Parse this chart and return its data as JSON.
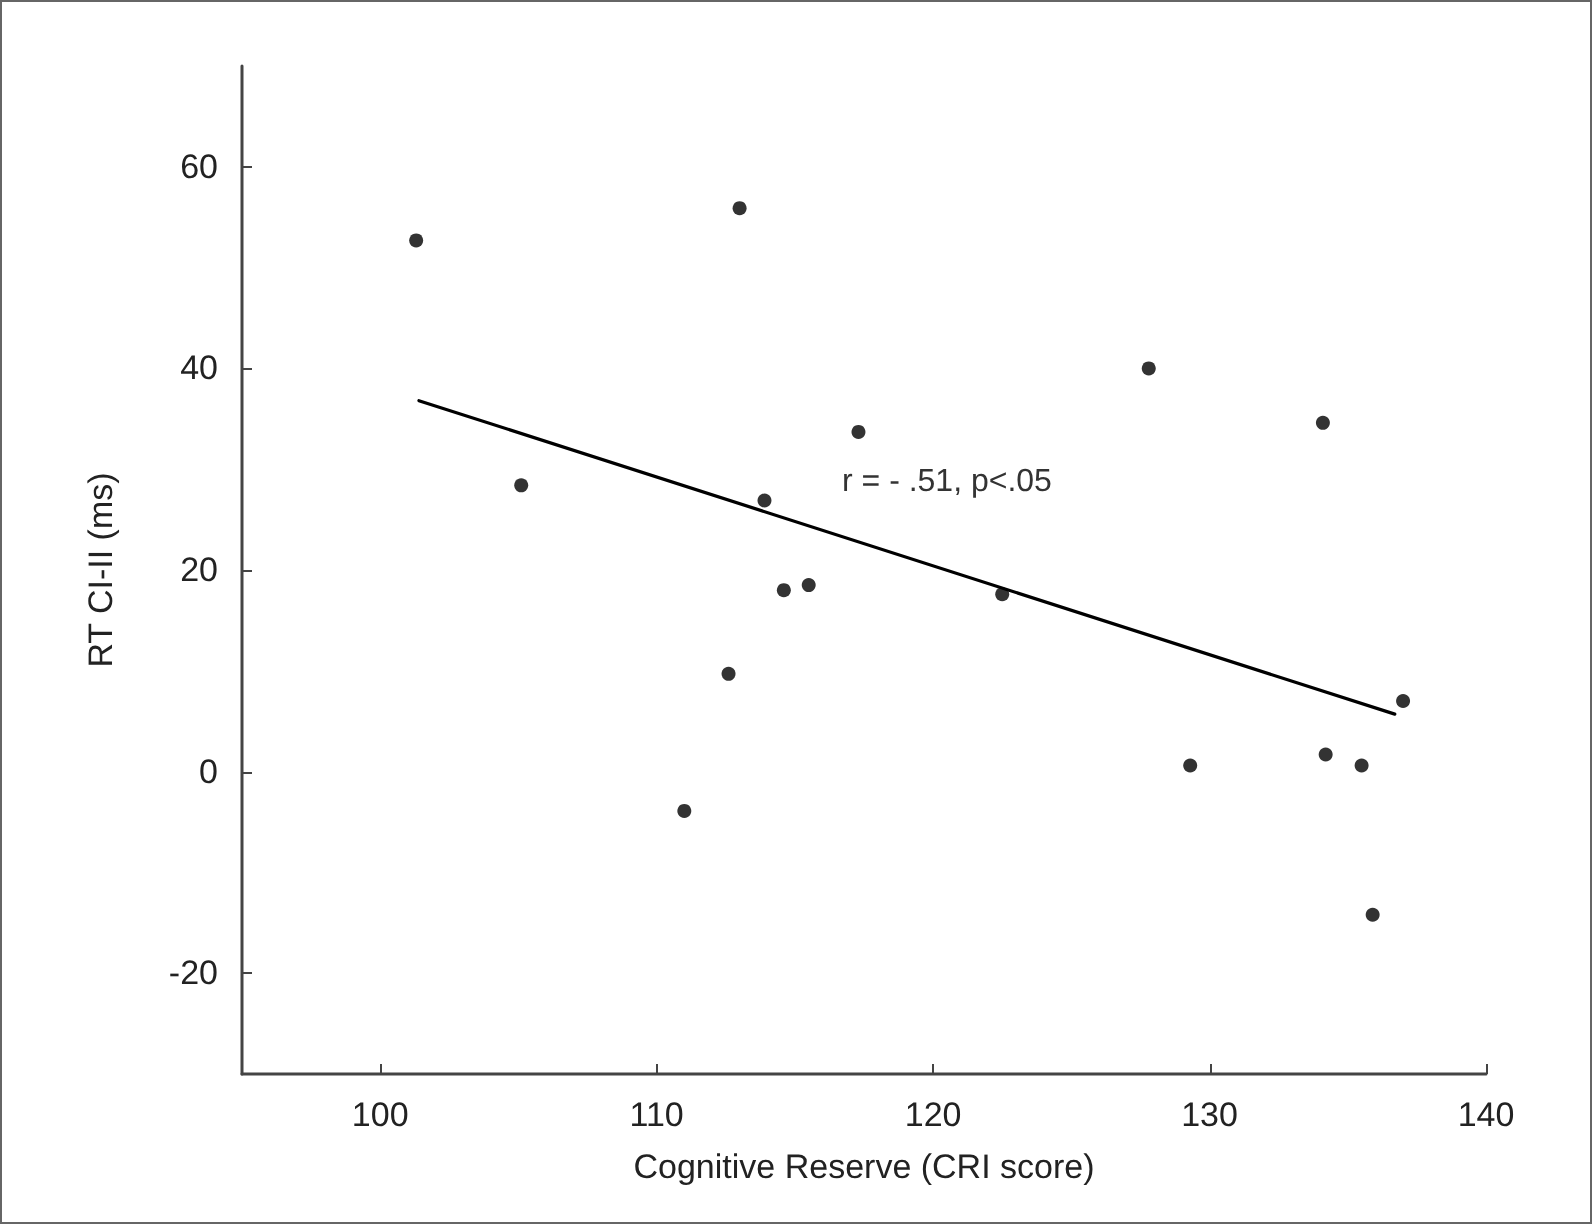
{
  "chart_data": {
    "type": "scatter",
    "xlabel": "Cognitive Reserve (CRI score)",
    "ylabel": "RT CI-II (ms)",
    "annotations": [
      "r = - .51, p<.05"
    ],
    "series": [
      {
        "color": "#000000",
        "x": [
          101.3,
          105.1,
          111.0,
          112.6,
          113.0,
          113.9,
          114.6,
          115.5,
          117.3,
          122.5,
          127.8,
          129.3,
          134.1,
          134.2,
          135.5,
          135.9,
          137.0
        ],
        "values": [
          52.7,
          28.4,
          -3.9,
          9.7,
          55.9,
          26.9,
          18.0,
          18.5,
          33.7,
          17.6,
          40.0,
          0.6,
          34.6,
          1.7,
          0.6,
          -14.2,
          7.0
        ]
      },
      {
        "type": "line",
        "color": "#000000",
        "marker": "none",
        "x": [
          101.4,
          136.7
        ],
        "values": [
          36.8,
          5.7
        ]
      }
    ],
    "xlim": [
      95,
      140
    ],
    "xticks": [
      100,
      110,
      120,
      130,
      140
    ],
    "ylim": [
      -30,
      70
    ],
    "yticks": [
      -20,
      0,
      20,
      40,
      60
    ],
    "grid": false,
    "marker": "circle"
  }
}
